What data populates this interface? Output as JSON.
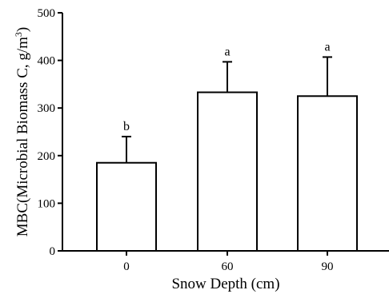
{
  "chart_data": {
    "type": "bar",
    "categories": [
      "0",
      "60",
      "90"
    ],
    "values": [
      185,
      333,
      325
    ],
    "error_upper": [
      240,
      397,
      407
    ],
    "significance_letters": [
      "b",
      "a",
      "a"
    ],
    "xlabel": "Snow Depth (cm)",
    "ylabel_main": "MBC(Microbial Biomass C, g/m",
    "ylabel_sup": "3",
    "ylabel_close": ")",
    "ylim": [
      0,
      500
    ],
    "yticks": [
      "0",
      "100",
      "200",
      "300",
      "400",
      "500"
    ],
    "grid": false,
    "legend": "none",
    "colors": {
      "bar_fill": "#ffffff",
      "bar_stroke": "#000000"
    }
  }
}
